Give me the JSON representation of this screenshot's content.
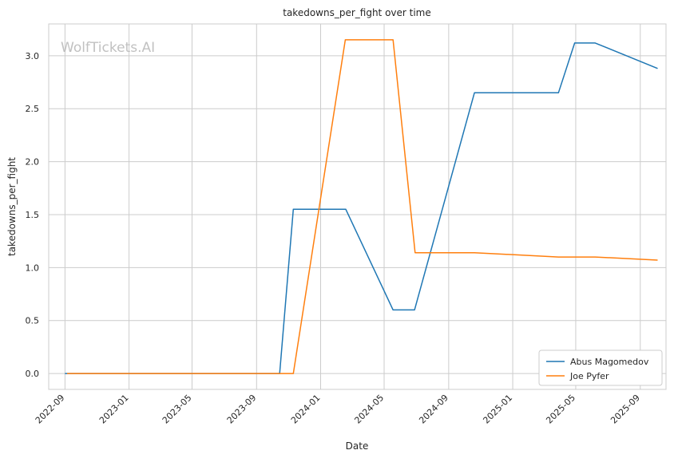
{
  "chart_data": {
    "type": "line",
    "title": "takedowns_per_fight over time",
    "xlabel": "Date",
    "ylabel": "takedowns_per_fight",
    "watermark": "WolfTickets.AI",
    "grid": true,
    "legend_position": "lower-right",
    "ylim": [
      -0.15,
      3.3
    ],
    "xlim": [
      "2022-08-01",
      "2025-10-20"
    ],
    "x_ticks": [
      "2022-09",
      "2023-01",
      "2023-05",
      "2023-09",
      "2024-01",
      "2024-05",
      "2024-09",
      "2025-01",
      "2025-05",
      "2025-09"
    ],
    "y_ticks": [
      0.0,
      0.5,
      1.0,
      1.5,
      2.0,
      2.5,
      3.0
    ],
    "y_tick_labels": [
      "0.0",
      "0.5",
      "1.0",
      "1.5",
      "2.0",
      "2.5",
      "3.0"
    ],
    "series": [
      {
        "name": "Abus Magomedov",
        "color": "#1f77b4",
        "points": [
          [
            "2022-09-01",
            0.0
          ],
          [
            "2023-10-15",
            0.0
          ],
          [
            "2023-11-10",
            1.55
          ],
          [
            "2024-02-18",
            1.55
          ],
          [
            "2024-05-18",
            0.6
          ],
          [
            "2024-06-28",
            0.6
          ],
          [
            "2024-10-20",
            2.65
          ],
          [
            "2025-03-29",
            2.65
          ],
          [
            "2025-04-29",
            3.12
          ],
          [
            "2025-06-07",
            3.12
          ],
          [
            "2025-10-04",
            2.88
          ]
        ]
      },
      {
        "name": "Joe Pyfer",
        "color": "#ff7f0e",
        "points": [
          [
            "2022-09-05",
            0.0
          ],
          [
            "2023-11-10",
            0.0
          ],
          [
            "2024-02-17",
            3.15
          ],
          [
            "2024-05-18",
            3.15
          ],
          [
            "2024-06-29",
            1.14
          ],
          [
            "2024-10-20",
            1.14
          ],
          [
            "2025-03-29",
            1.1
          ],
          [
            "2025-06-07",
            1.1
          ],
          [
            "2025-10-04",
            1.07
          ]
        ]
      }
    ]
  }
}
